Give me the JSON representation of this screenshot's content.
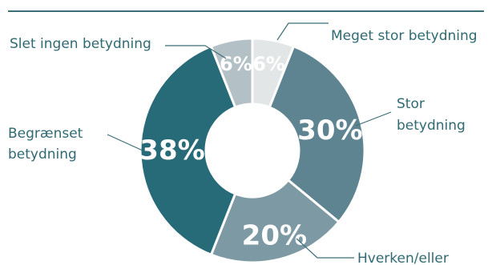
{
  "chart_data": {
    "type": "pie",
    "variant": "donut",
    "title": "",
    "slices": [
      {
        "label_lines": [
          "Meget stor betydning"
        ],
        "value": 6,
        "value_label": "6%",
        "color": "#e3e6e7"
      },
      {
        "label_lines": [
          "Stor",
          "betydning"
        ],
        "value": 30,
        "value_label": "30%",
        "color": "#5e8492"
      },
      {
        "label_lines": [
          "Hverken/eller"
        ],
        "value": 20,
        "value_label": "20%",
        "color": "#7d9aa4"
      },
      {
        "label_lines": [
          "Begrænset",
          "betydning"
        ],
        "value": 38,
        "value_label": "38%",
        "color": "#276a78"
      },
      {
        "label_lines": [
          "Slet ingen betydning"
        ],
        "value": 6,
        "value_label": "6%",
        "color": "#b3c0c5"
      }
    ],
    "start_angle_deg": 0,
    "direction": "clockwise",
    "legend": "callout labels beside the slices",
    "colors": {
      "rule": "#3c6f78",
      "label_text": "#2f6a72",
      "leader_line": "#3c6f78"
    }
  }
}
